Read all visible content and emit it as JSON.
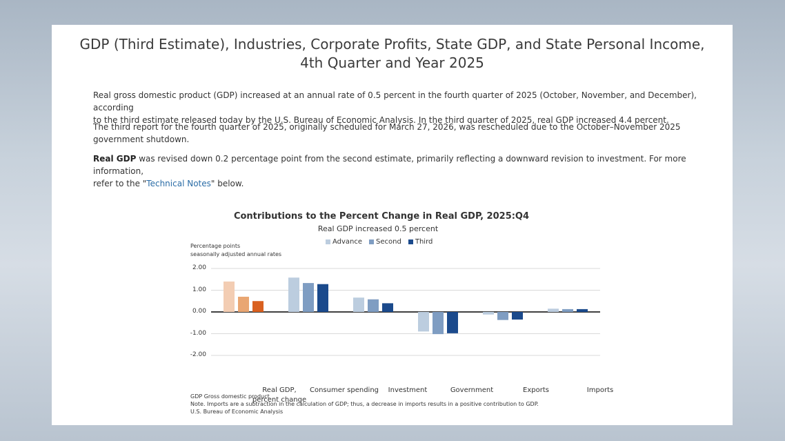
{
  "document": {
    "title_line1": "GDP (Third Estimate), Industries, Corporate Profits, State GDP, and State Personal Income,",
    "title_line2": "4th Quarter and Year 2025",
    "p1_line1": "Real gross domestic product (GDP) increased at an annual rate of 0.5 percent in the fourth quarter of 2025 (October, November, and December), according",
    "p1_line2": "to the third estimate released today by the U.S. Bureau of Economic Analysis. In the third quarter of 2025, real GDP increased 4.4 percent.",
    "p2_line1": "The third report for the fourth quarter of 2025, originally scheduled for March 27, 2026, was rescheduled due to the October–November 2025",
    "p2_line2": "government shutdown.",
    "p3_bold": "Real GDP",
    "p3_rest_line1": " was revised down 0.2 percentage point from the second estimate, primarily reflecting a downward revision to investment. For more information,",
    "p3_line2_pre": "refer to the \"",
    "p3_link": "Technical Notes",
    "p3_line2_post": "\" below."
  },
  "chart_data": {
    "type": "bar",
    "title": "Contributions to the Percent Change in Real GDP, 2025:Q4",
    "subtitle": "Real GDP increased 0.5 percent",
    "ylabel_line1": "Percentage points",
    "ylabel_line2": "seasonally adjusted annual rates",
    "ylim": [
      -2.0,
      2.0
    ],
    "yticks": [
      "2.00",
      "1.00",
      "0.00",
      "-1.00",
      "-2.00"
    ],
    "ytick_values": [
      2,
      1,
      0,
      -1,
      -2
    ],
    "categories": [
      "Real GDP, percent change",
      "Consumer spending",
      "Investment",
      "Government",
      "Exports",
      "Imports"
    ],
    "category_lines": [
      [
        "Real GDP,",
        "percent change"
      ],
      [
        "Consumer spending"
      ],
      [
        "Investment"
      ],
      [
        "Government"
      ],
      [
        "Exports"
      ],
      [
        "Imports"
      ]
    ],
    "legend": [
      "Advance",
      "Second",
      "Third"
    ],
    "series": [
      {
        "name": "Advance",
        "values": [
          1.4,
          1.58,
          0.66,
          -0.9,
          -0.12,
          0.15
        ]
      },
      {
        "name": "Second",
        "values": [
          0.7,
          1.33,
          0.58,
          -1.02,
          -0.37,
          0.13
        ]
      },
      {
        "name": "Third",
        "values": [
          0.5,
          1.28,
          0.4,
          -0.98,
          -0.35,
          0.13
        ]
      }
    ],
    "colors": {
      "gdp": [
        "#f3cdb3",
        "#e9a672",
        "#d9601f"
      ],
      "components": [
        "#bccddf",
        "#7f9dc2",
        "#1b4a8c"
      ]
    },
    "zero_line_color": "#000000",
    "grid_color": "#d9d9d9",
    "notes": [
      "GDP Gross domestic product",
      "Note. Imports are a subtraction in the calculation of GDP; thus, a decrease in imports results in a positive contribution to GDP.",
      "U.S. Bureau of Economic Analysis"
    ]
  }
}
